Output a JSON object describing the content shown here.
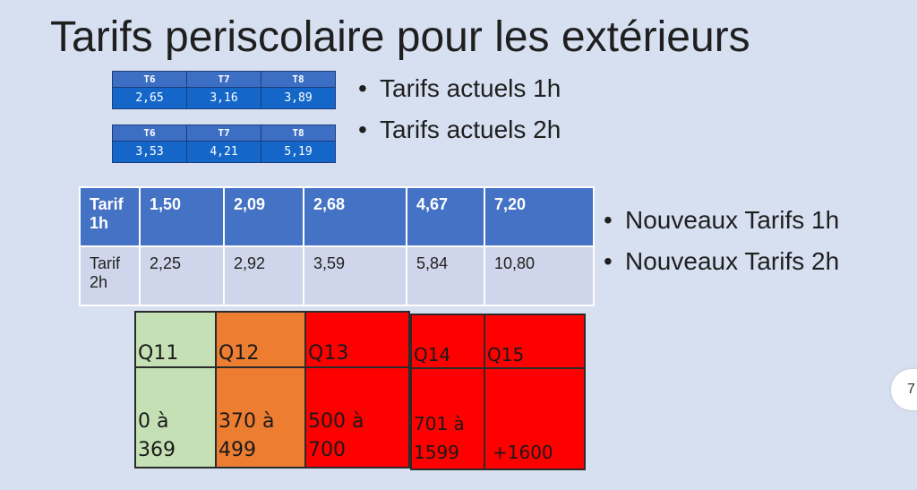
{
  "title": "Tarifs periscolaire pour les extérieurs",
  "table_1h": {
    "headers": [
      "T6",
      "T7",
      "T8"
    ],
    "values": [
      "2,65",
      "3,16",
      "3,89"
    ]
  },
  "table_2h": {
    "headers": [
      "T6",
      "T7",
      "T8"
    ],
    "values": [
      "3,53",
      "4,21",
      "5,19"
    ]
  },
  "bullets_actuels": [
    "Tarifs actuels 1h",
    "Tarifs actuels 2h"
  ],
  "bullets_nouveaux": [
    "Nouveaux Tarifs 1h",
    "Nouveaux Tarifs 2h"
  ],
  "new_table": {
    "row1": [
      "Tarif 1h",
      "1,50",
      "2,09",
      "2,68",
      "4,67",
      "7,20"
    ],
    "row2": [
      "Tarif 2h",
      "2,25",
      "2,92",
      "3,59",
      "5,84",
      "10,80"
    ]
  },
  "quintiles": [
    {
      "label": "Q11",
      "range_line1": "0 à",
      "range_line2": "369",
      "color": "#c5e0b4"
    },
    {
      "label": "Q12",
      "range_line1": "370 à",
      "range_line2": "499",
      "color": "#ed7d31"
    },
    {
      "label": "Q13",
      "range_line1": "500 à",
      "range_line2": "700",
      "color": "#ff0000"
    },
    {
      "label": "Q14",
      "range_line1": "701 à",
      "range_line2": "1599",
      "color": "#ff0000"
    },
    {
      "label": "Q15",
      "range_line1": "",
      "range_line2": "+1600",
      "color": "#ff0000"
    }
  ],
  "page_number": "7"
}
